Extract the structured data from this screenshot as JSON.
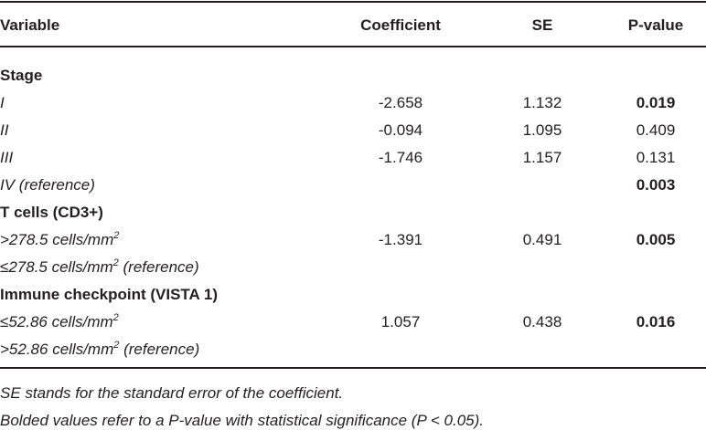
{
  "table": {
    "header": [
      "Variable",
      "Coefficient",
      "SE",
      "P-value"
    ],
    "rows": [
      {
        "section": "Stage"
      },
      {
        "variable": {
          "text": "I"
        },
        "coefficient": "-2.658",
        "se": "1.132",
        "p_value": "0.019",
        "significant": true
      },
      {
        "variable": {
          "text": "II"
        },
        "coefficient": "-0.094",
        "se": "1.095",
        "p_value": "0.409",
        "significant": false
      },
      {
        "variable": {
          "text": "III"
        },
        "coefficient": "-1.746",
        "se": "1.157",
        "p_value": "0.131",
        "significant": false
      },
      {
        "variable": {
          "text": "IV (reference)"
        },
        "p_value": "0.003",
        "significant": true
      },
      {
        "section": "T cells (CD3+)"
      },
      {
        "variable": {
          "text": ">278.5 cells/mm",
          "sup": "2"
        },
        "coefficient": "-1.391",
        "se": "0.491",
        "p_value": "0.005",
        "significant": true
      },
      {
        "variable": {
          "text": "≤278.5 cells/mm",
          "sup": "2",
          "suffix": " (reference)"
        }
      },
      {
        "section": "Immune checkpoint (VISTA 1)"
      },
      {
        "variable": {
          "text": "≤52.86 cells/mm",
          "sup": "2"
        },
        "coefficient": "1.057",
        "se": "0.438",
        "p_value": "0.016",
        "significant": true
      },
      {
        "variable": {
          "text": ">52.86 cells/mm",
          "sup": "2",
          "suffix": " (reference)"
        }
      }
    ]
  },
  "footnotes": [
    "SE stands for the standard error of the coefficient.",
    "Bolded values refer to a P-value with statistical significance (P < 0.05)."
  ]
}
